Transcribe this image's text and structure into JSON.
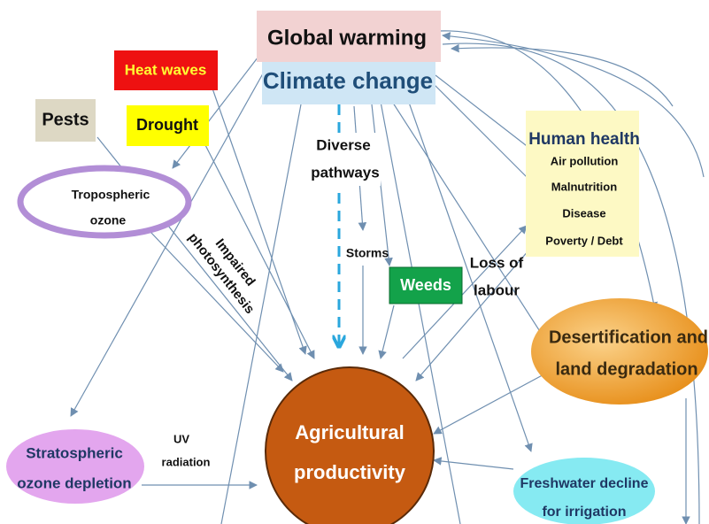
{
  "nodes": {
    "global_warming": "Global warming",
    "climate_change": "Climate change",
    "heat_waves": "Heat waves",
    "pests": "Pests",
    "drought": "Drought",
    "tropospheric_ozone": [
      "Tropospheric",
      "ozone"
    ],
    "impaired_photosynthesis": [
      "Impaired",
      "photosynthesis"
    ],
    "diverse_pathways": [
      "Diverse",
      "pathways"
    ],
    "storms": "Storms",
    "weeds": "Weeds",
    "loss_of_labour": [
      "Loss of",
      "labour"
    ],
    "human_health": {
      "title": "Human health",
      "items": [
        "Air pollution",
        "Malnutrition",
        "Disease",
        "Poverty / Debt"
      ]
    },
    "desertification": [
      "Desertification and",
      "land degradation"
    ],
    "agricultural_productivity": [
      "Agricultural",
      "productivity"
    ],
    "stratospheric_ozone": [
      "Stratospheric",
      "ozone depletion"
    ],
    "uv_radiation": [
      "UV",
      "radiation"
    ],
    "freshwater": [
      "Freshwater decline",
      "for irrigation"
    ]
  }
}
